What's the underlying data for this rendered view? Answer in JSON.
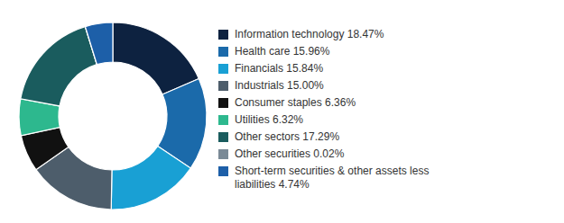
{
  "chart_data": {
    "type": "pie",
    "categories": [
      "Information technology 18.47%",
      "Health care 15.96%",
      "Financials 15.84%",
      "Industrials 15.00%",
      "Consumer staples 6.36%",
      "Utilities 6.32%",
      "Other sectors 17.29%",
      "Other securities 0.02%",
      "Short-term securities & other assets less\nliabilities 4.74%"
    ],
    "values": [
      18.47,
      15.96,
      15.84,
      15.0,
      6.36,
      6.32,
      17.29,
      0.02,
      4.74
    ],
    "colors": [
      "#0d2240",
      "#1b6aaa",
      "#19a0d4",
      "#4d5d6b",
      "#111111",
      "#2db88e",
      "#1a5c5e",
      "#7a8a96",
      "#1d5fa8"
    ],
    "legend": "right"
  }
}
